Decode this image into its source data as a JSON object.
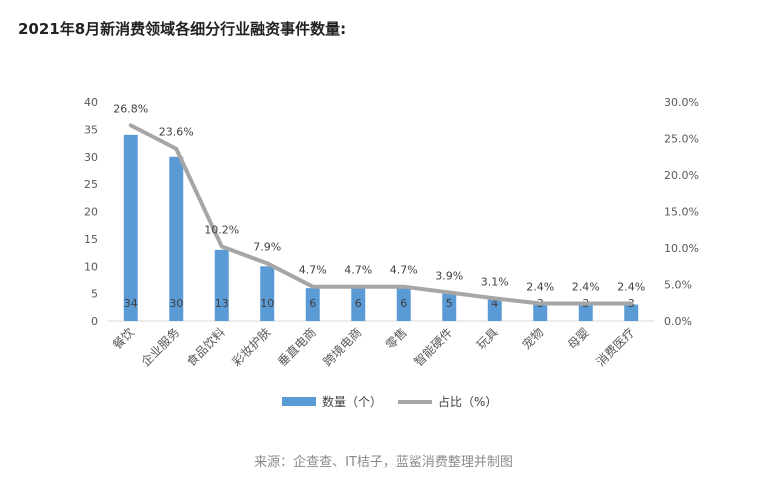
{
  "page": {
    "title": "2021年8月新消费领域各细分行业融资事件数量:",
    "source": "来源：企查查、IT桔子，蓝鲨消费整理并制图"
  },
  "chart_data": {
    "type": "bar",
    "categories": [
      "餐饮",
      "企业服务",
      "食品饮料",
      "彩妆护肤",
      "垂直电商",
      "跨境电商",
      "零售",
      "智能硬件",
      "玩具",
      "宠物",
      "母婴",
      "消费医疗"
    ],
    "series": [
      {
        "name": "数量（个）",
        "type": "bar",
        "axis": "left",
        "values": [
          34,
          30,
          13,
          10,
          6,
          6,
          6,
          5,
          4,
          3,
          3,
          3
        ],
        "labels": [
          "34",
          "30",
          "13",
          "10",
          "6",
          "6",
          "6",
          "5",
          "4",
          "3",
          "3",
          "3"
        ],
        "color": "#5b9bd5"
      },
      {
        "name": "占比（%）",
        "type": "line",
        "axis": "right",
        "values": [
          26.8,
          23.6,
          10.2,
          7.9,
          4.7,
          4.7,
          4.7,
          3.9,
          3.1,
          2.4,
          2.4,
          2.4
        ],
        "labels": [
          "26.8%",
          "23.6%",
          "10.2%",
          "7.9%",
          "4.7%",
          "4.7%",
          "4.7%",
          "3.9%",
          "3.1%",
          "2.4%",
          "2.4%",
          "2.4%"
        ],
        "color": "#a6a6a6"
      }
    ],
    "y_left": {
      "ylim": [
        0,
        40
      ],
      "ticks": [
        "0",
        "5",
        "10",
        "15",
        "20",
        "25",
        "30",
        "35",
        "40"
      ]
    },
    "y_right": {
      "ylim": [
        0,
        30
      ],
      "ticks": [
        "0.0%",
        "5.0%",
        "10.0%",
        "15.0%",
        "20.0%",
        "25.0%",
        "30.0%"
      ]
    },
    "grid": false,
    "legend": "bottom"
  }
}
